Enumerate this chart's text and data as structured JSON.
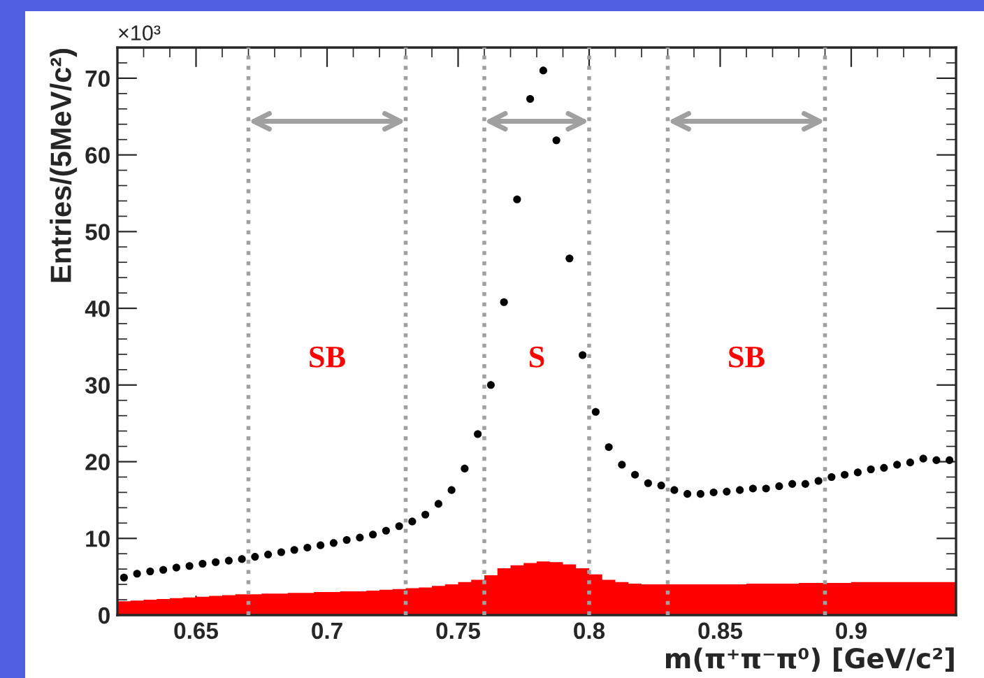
{
  "chart_data": {
    "type": "histogram",
    "xlabel": "m(π⁺π⁻π⁰) [GeV/c²]",
    "ylabel": "Entries/(5MeV/c²)",
    "annotations": [
      "×10³",
      "SB",
      "S",
      "SB"
    ],
    "bins": [
      0.62,
      0.625,
      0.63,
      0.635,
      0.64,
      0.645,
      0.65,
      0.655,
      0.66,
      0.665,
      0.67,
      0.675,
      0.68,
      0.685,
      0.69,
      0.695,
      0.7,
      0.705,
      0.71,
      0.715,
      0.72,
      0.725,
      0.73,
      0.735,
      0.74,
      0.745,
      0.75,
      0.755,
      0.76,
      0.765,
      0.77,
      0.775,
      0.78,
      0.785,
      0.79,
      0.795,
      0.8,
      0.805,
      0.81,
      0.815,
      0.82,
      0.825,
      0.83,
      0.835,
      0.84,
      0.845,
      0.85,
      0.855,
      0.86,
      0.865,
      0.87,
      0.875,
      0.88,
      0.885,
      0.89,
      0.895,
      0.9,
      0.905,
      0.91,
      0.915,
      0.92,
      0.925,
      0.93,
      0.935,
      0.94
    ],
    "series": [
      {
        "color": "#ff0000",
        "values": [
          1.8,
          1.9,
          2.0,
          2.1,
          2.2,
          2.3,
          2.4,
          2.5,
          2.6,
          2.7,
          2.7,
          2.8,
          2.8,
          2.9,
          2.9,
          3.0,
          3.0,
          3.1,
          3.1,
          3.2,
          3.3,
          3.4,
          3.5,
          3.6,
          3.8,
          4.0,
          4.3,
          4.6,
          5.2,
          6.1,
          6.5,
          6.8,
          7.0,
          6.9,
          6.6,
          6.1,
          5.3,
          4.6,
          4.3,
          4.1,
          4.0,
          4.0,
          4.0,
          4.0,
          4.0,
          4.0,
          4.0,
          4.0,
          4.1,
          4.1,
          4.1,
          4.1,
          4.2,
          4.2,
          4.2,
          4.2,
          4.3,
          4.3,
          4.3,
          4.3,
          4.3,
          4.3,
          4.3,
          4.3
        ]
      },
      {
        "type": "scatter",
        "color": "#000000",
        "marker": "circle",
        "x": [
          0.6225,
          0.6275,
          0.6325,
          0.6375,
          0.6425,
          0.6475,
          0.6525,
          0.6575,
          0.6625,
          0.6675,
          0.6725,
          0.6775,
          0.6825,
          0.6875,
          0.6925,
          0.6975,
          0.7025,
          0.7075,
          0.7125,
          0.7175,
          0.7225,
          0.7275,
          0.7325,
          0.7375,
          0.7425,
          0.7475,
          0.7525,
          0.7575,
          0.7625,
          0.7675,
          0.7725,
          0.7775,
          0.7825,
          0.7875,
          0.7925,
          0.7975,
          0.8025,
          0.8075,
          0.8125,
          0.8175,
          0.8225,
          0.8275,
          0.8325,
          0.8375,
          0.8425,
          0.8475,
          0.8525,
          0.8575,
          0.8625,
          0.8675,
          0.8725,
          0.8775,
          0.8825,
          0.8875,
          0.8925,
          0.8975,
          0.9025,
          0.9075,
          0.9125,
          0.9175,
          0.9225,
          0.9275,
          0.9325,
          0.9375
        ],
        "values": [
          4.9,
          5.4,
          5.7,
          5.9,
          6.2,
          6.4,
          6.7,
          6.9,
          7.1,
          7.3,
          7.6,
          7.9,
          8.2,
          8.5,
          8.8,
          9.1,
          9.4,
          9.8,
          10.1,
          10.5,
          11.0,
          11.6,
          12.2,
          13.1,
          14.5,
          16.3,
          19.1,
          23.6,
          30.0,
          40.8,
          54.2,
          67.3,
          71.0,
          61.9,
          46.5,
          33.9,
          26.5,
          21.9,
          19.6,
          18.3,
          17.2,
          16.9,
          16.3,
          15.8,
          15.8,
          16.0,
          16.1,
          16.3,
          16.5,
          16.5,
          16.8,
          17.1,
          17.1,
          17.5,
          18.0,
          18.3,
          18.6,
          19.0,
          19.2,
          19.6,
          19.9,
          20.4,
          20.2,
          20.2
        ]
      }
    ],
    "ref_lines": [
      {
        "axis": "x",
        "value": 0.67,
        "color": "#a0a0a0",
        "line_style": "dotted"
      },
      {
        "axis": "x",
        "value": 0.73,
        "color": "#a0a0a0",
        "line_style": "dotted"
      },
      {
        "axis": "x",
        "value": 0.76,
        "color": "#a0a0a0",
        "line_style": "dotted"
      },
      {
        "axis": "x",
        "value": 0.8,
        "color": "#a0a0a0",
        "line_style": "dotted"
      },
      {
        "axis": "x",
        "value": 0.83,
        "color": "#a0a0a0",
        "line_style": "dotted"
      },
      {
        "axis": "x",
        "value": 0.89,
        "color": "#a0a0a0",
        "line_style": "dotted"
      }
    ],
    "xlim": [
      0.62,
      0.94
    ],
    "ylim": [
      0,
      74
    ],
    "xticks": [
      0.65,
      0.7,
      0.75,
      0.8,
      0.85,
      0.9
    ],
    "yticks": [
      0,
      10,
      20,
      30,
      40,
      50,
      60,
      70
    ],
    "grid": false,
    "legend": false
  }
}
